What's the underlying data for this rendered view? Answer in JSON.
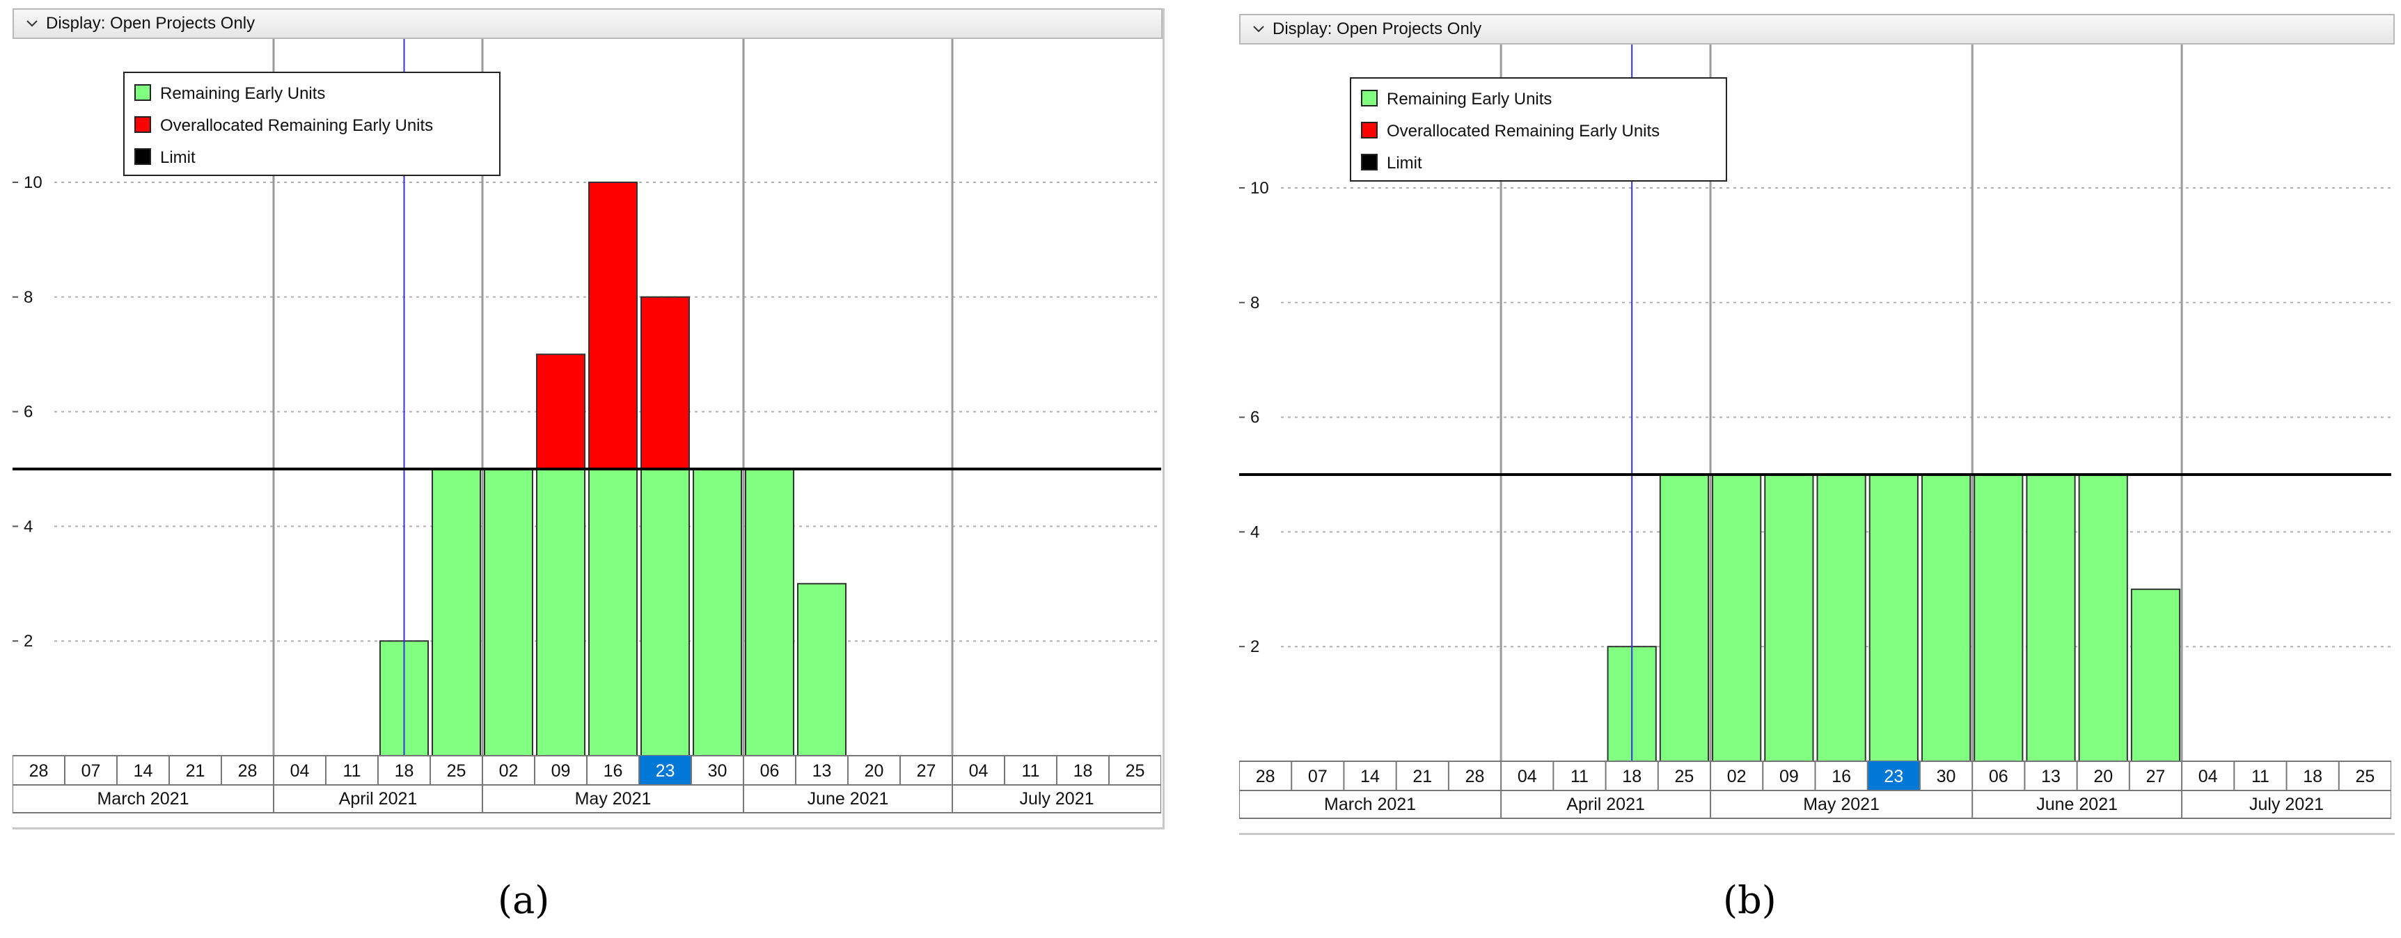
{
  "panels": [
    {
      "id": "a",
      "caption": "(a)",
      "header_text": "Display: Open Projects Only",
      "icons": {
        "header": "chevron-down-icon"
      },
      "week_labels": [
        "28",
        "07",
        "14",
        "21",
        "28",
        "04",
        "11",
        "18",
        "25",
        "02",
        "09",
        "16",
        "23",
        "30",
        "06",
        "13",
        "20",
        "27",
        "04",
        "11",
        "18",
        "25"
      ],
      "highlight_week": "23",
      "month_labels": [
        "March 2021",
        "April 2021",
        "May 2021",
        "June 2021",
        "July 2021"
      ],
      "y_ticks": [
        2,
        4,
        6,
        8,
        10
      ],
      "legend": [
        "Remaining Early Units",
        "Overallocated Remaining Early Units",
        "Limit"
      ],
      "colors": {
        "green": "#80ff80",
        "red": "#ff0000",
        "limit": "#000000",
        "marker": "#3333dd",
        "highlight": "#0078d7"
      },
      "chart_data": {
        "type": "bar",
        "categories": [
          "28",
          "07",
          "14",
          "21",
          "28",
          "04",
          "11",
          "18",
          "25",
          "02",
          "09",
          "16",
          "23",
          "30",
          "06",
          "13",
          "20",
          "27",
          "04",
          "11",
          "18",
          "25"
        ],
        "series": [
          {
            "name": "Remaining Early Units",
            "values": [
              0,
              0,
              0,
              0,
              0,
              0,
              0,
              2,
              5,
              5,
              5,
              5,
              5,
              5,
              5,
              3,
              0,
              0,
              0,
              0,
              0,
              0
            ]
          },
          {
            "name": "Overallocated Remaining Early Units",
            "values": [
              0,
              0,
              0,
              0,
              0,
              0,
              0,
              0,
              0,
              0,
              2,
              5,
              3,
              0,
              0,
              0,
              0,
              0,
              0,
              0,
              0,
              0
            ]
          }
        ],
        "limit": 5,
        "ylim": [
          0,
          12.5
        ],
        "grid": true,
        "legend_position": "top-left",
        "marker_week_index": 7
      }
    },
    {
      "id": "b",
      "caption": "(b)",
      "header_text": "Display: Open Projects Only",
      "icons": {
        "header": "chevron-down-icon"
      },
      "week_labels": [
        "28",
        "07",
        "14",
        "21",
        "28",
        "04",
        "11",
        "18",
        "25",
        "02",
        "09",
        "16",
        "23",
        "30",
        "06",
        "13",
        "20",
        "27",
        "04",
        "11",
        "18",
        "25"
      ],
      "highlight_week": "23",
      "month_labels": [
        "March 2021",
        "April 2021",
        "May 2021",
        "June 2021",
        "July 2021"
      ],
      "y_ticks": [
        2,
        4,
        6,
        8,
        10
      ],
      "legend": [
        "Remaining Early Units",
        "Overallocated Remaining Early Units",
        "Limit"
      ],
      "colors": {
        "green": "#80ff80",
        "red": "#ff0000",
        "limit": "#000000",
        "marker": "#3333dd",
        "highlight": "#0078d7"
      },
      "chart_data": {
        "type": "bar",
        "categories": [
          "28",
          "07",
          "14",
          "21",
          "28",
          "04",
          "11",
          "18",
          "25",
          "02",
          "09",
          "16",
          "23",
          "30",
          "06",
          "13",
          "20",
          "27",
          "04",
          "11",
          "18",
          "25"
        ],
        "series": [
          {
            "name": "Remaining Early Units",
            "values": [
              0,
              0,
              0,
              0,
              0,
              0,
              0,
              2,
              5,
              5,
              5,
              5,
              5,
              5,
              5,
              5,
              5,
              3,
              0,
              0,
              0,
              0
            ]
          },
          {
            "name": "Overallocated Remaining Early Units",
            "values": [
              0,
              0,
              0,
              0,
              0,
              0,
              0,
              0,
              0,
              0,
              0,
              0,
              0,
              0,
              0,
              0,
              0,
              0,
              0,
              0,
              0,
              0
            ]
          }
        ],
        "limit": 5,
        "ylim": [
          0,
          12.5
        ],
        "grid": true,
        "legend_position": "top-left",
        "marker_week_index": 7
      }
    }
  ]
}
